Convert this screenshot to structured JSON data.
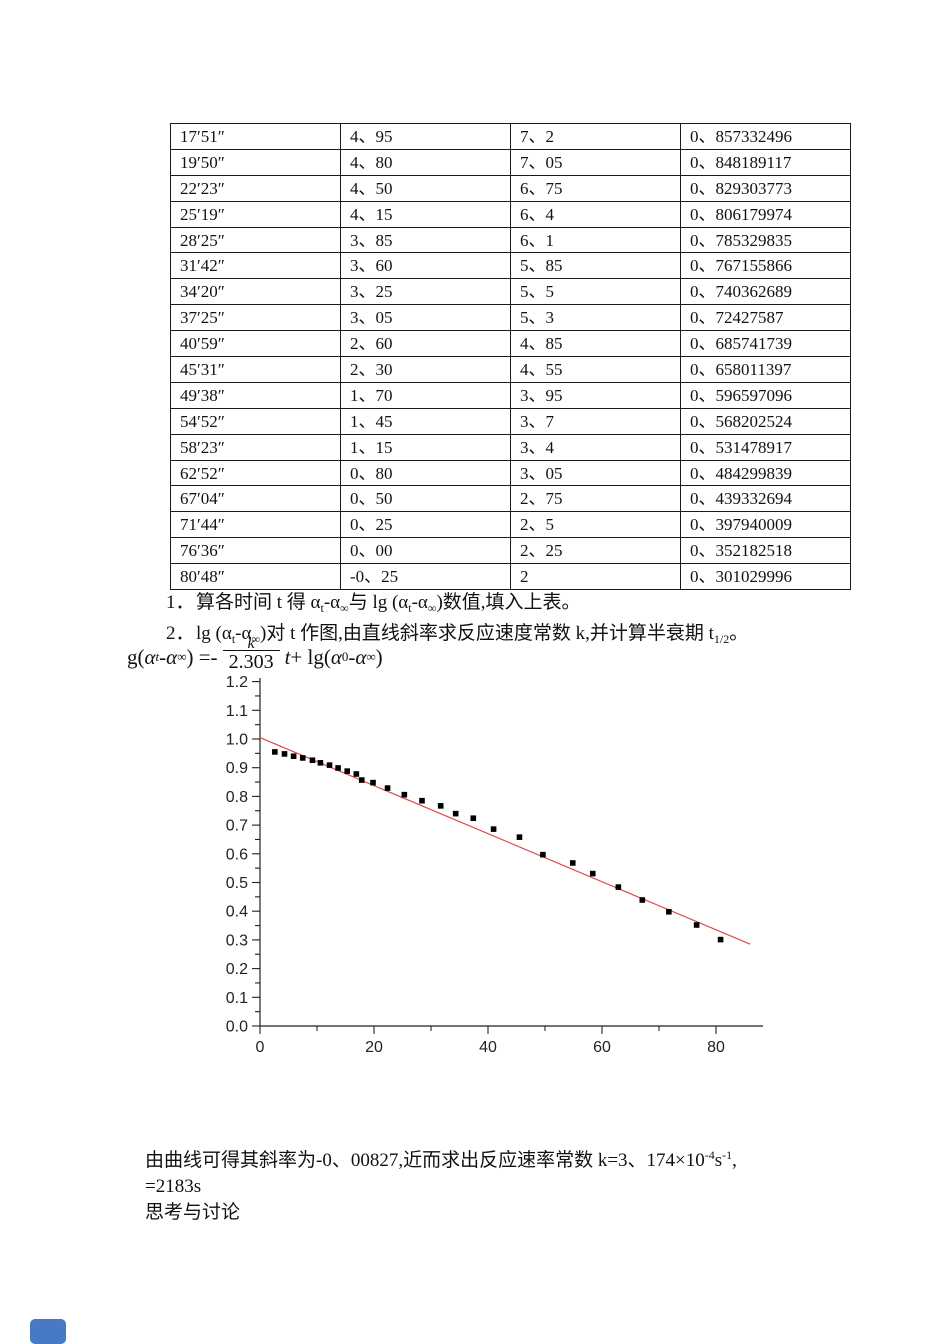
{
  "document": {
    "table_rows": [
      [
        "17′51″",
        "4、95",
        "7、2",
        "0、857332496"
      ],
      [
        "19′50″",
        "4、80",
        "7、05",
        "0、848189117"
      ],
      [
        "22′23″",
        "4、50",
        "6、75",
        "0、829303773"
      ],
      [
        "25′19″",
        "4、15",
        "6、4",
        "0、806179974"
      ],
      [
        "28′25″",
        "3、85",
        "6、1",
        "0、785329835"
      ],
      [
        "31′42″",
        "3、60",
        "5、85",
        "0、767155866"
      ],
      [
        "34′20″",
        "3、25",
        "5、5",
        "0、740362689"
      ],
      [
        "37′25″",
        "3、05",
        "5、3",
        "0、72427587"
      ],
      [
        "40′59″",
        "2、60",
        "4、85",
        "0、685741739"
      ],
      [
        "45′31″",
        "2、30",
        "4、55",
        "0、658011397"
      ],
      [
        "49′38″",
        "1、70",
        "3、95",
        "0、596597096"
      ],
      [
        "54′52″",
        "1、45",
        "3、7",
        "0、568202524"
      ],
      [
        "58′23″",
        "1、15",
        "3、4",
        "0、531478917"
      ],
      [
        "62′52″",
        "0、80",
        "3、05",
        "0、484299839"
      ],
      [
        "67′04″",
        "0、50",
        "2、75",
        "0、439332694"
      ],
      [
        "71′44″",
        "0、25",
        "2、5",
        "0、397940009"
      ],
      [
        "76′36″",
        "0、00",
        "2、25",
        "0、352182518"
      ],
      [
        "80′48″",
        "-0、25",
        "2",
        "0、301029996"
      ]
    ],
    "notes": [
      {
        "num": "1．",
        "segments": [
          {
            "t": "算各时间 t 得 α"
          },
          {
            "t": "t",
            "sub": true
          },
          {
            "t": "-α"
          },
          {
            "t": "∞",
            "sub": true
          },
          {
            "t": "与 lg (α"
          },
          {
            "t": "t",
            "sub": true
          },
          {
            "t": "-α"
          },
          {
            "t": "∞",
            "sub": true
          },
          {
            "t": ")数值,填入上表。"
          }
        ]
      },
      {
        "num": "2．",
        "segments": [
          {
            "t": "lg (α"
          },
          {
            "t": "t",
            "sub": true
          },
          {
            "t": "-α"
          },
          {
            "t": "∞",
            "sub": true
          },
          {
            "t": ")对 t 作图,由直线斜率求反应速度常数 k,并计算半衰期 t"
          },
          {
            "t": "1/2",
            "sub": true
          },
          {
            "t": "。"
          }
        ]
      }
    ],
    "formula_segments": [
      {
        "t": "g("
      },
      {
        "t": "α",
        "i": true
      },
      {
        "t": "t",
        "sub": true,
        "i": true
      },
      {
        "t": " - "
      },
      {
        "t": "α",
        "i": true
      },
      {
        "t": "∞",
        "sub": true
      },
      {
        "t": ") =- "
      },
      {
        "frac": {
          "num": "k",
          "den": "2.303"
        }
      },
      {
        "t": "t",
        "i": true
      },
      {
        "t": " + lg("
      },
      {
        "t": "α",
        "i": true
      },
      {
        "t": "0",
        "sub": true
      },
      {
        "t": " - "
      },
      {
        "t": "α",
        "i": true
      },
      {
        "t": "∞",
        "sub": true
      },
      {
        "t": ")"
      }
    ],
    "result_lines": {
      "line1_segments": [
        {
          "t": "由曲线可得其斜率为-0、00827,近而求出反应速率常数 k=3、174×10"
        },
        {
          "t": "-4",
          "sup": true
        },
        {
          "t": "s"
        },
        {
          "t": "-1",
          "sup": true
        },
        {
          "t": ","
        }
      ],
      "line2": "=2183s",
      "line3": "思考与讨论"
    },
    "marker_color": "#4779c4"
  },
  "chart_data": {
    "type": "scatter",
    "title": "",
    "xlabel": "",
    "ylabel": "",
    "xlim": [
      0,
      88
    ],
    "ylim": [
      0,
      1.2
    ],
    "xticks_major": [
      0,
      20,
      40,
      60,
      80
    ],
    "xticks_minor": [
      10,
      30,
      50,
      70
    ],
    "ytick_step": 0.1,
    "ytick_minor_step": 0.05,
    "grid": false,
    "legend": "none",
    "marker": {
      "shape": "square",
      "color": "#000000",
      "size": 5.6
    },
    "axis_color": "#222222",
    "points": [
      [
        2.6,
        0.955
      ],
      [
        4.3,
        0.948
      ],
      [
        5.9,
        0.94
      ],
      [
        7.5,
        0.934
      ],
      [
        9.2,
        0.926
      ],
      [
        10.6,
        0.917
      ],
      [
        12.2,
        0.909
      ],
      [
        13.7,
        0.899
      ],
      [
        15.3,
        0.888
      ],
      [
        16.9,
        0.878
      ],
      [
        17.85,
        0.857
      ],
      [
        19.83,
        0.848
      ],
      [
        22.38,
        0.829
      ],
      [
        25.32,
        0.806
      ],
      [
        28.42,
        0.785
      ],
      [
        31.7,
        0.767
      ],
      [
        34.33,
        0.74
      ],
      [
        37.42,
        0.724
      ],
      [
        40.98,
        0.686
      ],
      [
        45.52,
        0.658
      ],
      [
        49.63,
        0.597
      ],
      [
        54.87,
        0.568
      ],
      [
        58.38,
        0.531
      ],
      [
        62.87,
        0.484
      ],
      [
        67.07,
        0.439
      ],
      [
        71.73,
        0.398
      ],
      [
        76.6,
        0.352
      ],
      [
        80.8,
        0.301
      ]
    ],
    "fit_line": {
      "x": [
        0,
        86
      ],
      "y": [
        1.005,
        0.285
      ],
      "color": "#dd4b4b",
      "slope_label": "-0.00827"
    }
  }
}
